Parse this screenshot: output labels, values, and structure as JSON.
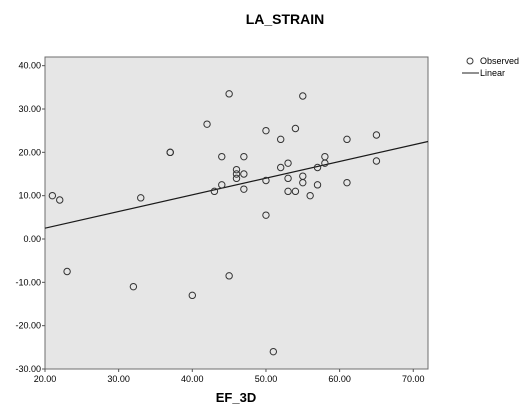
{
  "chart_data": {
    "type": "scatter",
    "title": "LA_STRAIN",
    "xlabel": "EF_3D",
    "ylabel": "",
    "xlim": [
      20,
      72
    ],
    "ylim": [
      -30,
      42
    ],
    "xticks": [
      20,
      30,
      40,
      50,
      60,
      70
    ],
    "yticks": [
      -30,
      -20,
      -10,
      0,
      10,
      20,
      30,
      40
    ],
    "xtick_labels": [
      "20.00",
      "30.00",
      "40.00",
      "50.00",
      "60.00",
      "70.00"
    ],
    "ytick_labels": [
      "-30.00",
      "-20.00",
      "-10.00",
      "0.00",
      "10.00",
      "20.00",
      "30.00",
      "40.00"
    ],
    "grid": false,
    "background_color": "#e6e6e6",
    "legend": {
      "position": "top-right",
      "entries": [
        "Observed",
        "Linear"
      ]
    },
    "series": [
      {
        "name": "Observed",
        "kind": "points",
        "points": [
          [
            21.0,
            10.0
          ],
          [
            22.0,
            9.0
          ],
          [
            23.0,
            -7.5
          ],
          [
            32.0,
            -11.0
          ],
          [
            33.0,
            9.5
          ],
          [
            37.0,
            20.0
          ],
          [
            37.0,
            20.0
          ],
          [
            40.0,
            -13.0
          ],
          [
            42.0,
            26.5
          ],
          [
            43.0,
            11.0
          ],
          [
            44.0,
            12.5
          ],
          [
            44.0,
            19.0
          ],
          [
            45.0,
            -8.5
          ],
          [
            45.0,
            33.5
          ],
          [
            46.0,
            16.0
          ],
          [
            46.0,
            15.0
          ],
          [
            46.0,
            14.0
          ],
          [
            47.0,
            15.0
          ],
          [
            47.0,
            11.5
          ],
          [
            47.0,
            19.0
          ],
          [
            50.0,
            25.0
          ],
          [
            50.0,
            13.5
          ],
          [
            50.0,
            5.5
          ],
          [
            51.0,
            -26.0
          ],
          [
            52.0,
            23.0
          ],
          [
            52.0,
            16.5
          ],
          [
            53.0,
            17.5
          ],
          [
            53.0,
            14.0
          ],
          [
            53.0,
            11.0
          ],
          [
            54.0,
            25.5
          ],
          [
            54.0,
            11.0
          ],
          [
            55.0,
            33.0
          ],
          [
            55.0,
            14.5
          ],
          [
            55.0,
            13.0
          ],
          [
            56.0,
            10.0
          ],
          [
            57.0,
            16.5
          ],
          [
            57.0,
            12.5
          ],
          [
            58.0,
            17.5
          ],
          [
            58.0,
            19.0
          ],
          [
            61.0,
            23.0
          ],
          [
            61.0,
            13.0
          ],
          [
            65.0,
            24.0
          ],
          [
            65.0,
            18.0
          ]
        ]
      },
      {
        "name": "Linear",
        "kind": "line",
        "points": [
          [
            20.0,
            2.5
          ],
          [
            72.0,
            22.5
          ]
        ]
      }
    ]
  }
}
